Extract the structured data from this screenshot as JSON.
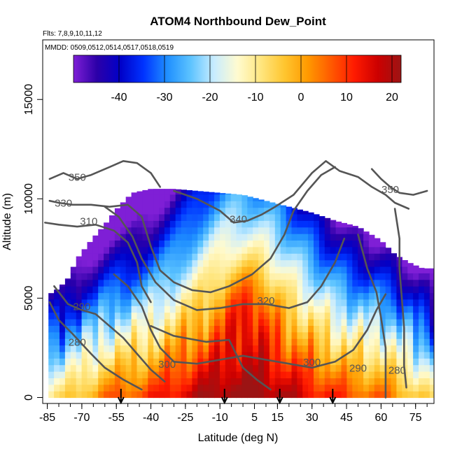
{
  "chart_data": {
    "type": "heatmap",
    "title": "ATOM4 Northbound Dew_Point",
    "flights_note": "Flts: 7,8,9,10,11,12",
    "dates_note": "MMDD: 0509,0512,0514,0517,0518,0519",
    "xlabel": "Latitude (deg N)",
    "ylabel": "Altitude (m)",
    "xlim": [
      -87,
      83
    ],
    "ylim": [
      -300,
      18000
    ],
    "x_ticks": [
      -85,
      -70,
      -55,
      -40,
      -25,
      -10,
      5,
      15,
      30,
      45,
      60,
      75
    ],
    "y_ticks": [
      0,
      5000,
      10000,
      15000
    ],
    "colorbar": {
      "range": [
        -50,
        22
      ],
      "ticks": [
        -40,
        -30,
        -20,
        -10,
        0,
        10,
        20
      ],
      "colors": [
        "#7f1fd6",
        "#2c00a8",
        "#0000c8",
        "#0033ff",
        "#1f8fff",
        "#5cc3ff",
        "#c8ecff",
        "#fffbd0",
        "#ffe680",
        "#ffc630",
        "#ff9a00",
        "#ff5a00",
        "#ff1a00",
        "#cc0000",
        "#9c1414"
      ]
    },
    "curtain_profile": [
      {
        "lat": -84,
        "top": 5200
      },
      {
        "lat": -80,
        "top": 5500
      },
      {
        "lat": -76,
        "top": 6000
      },
      {
        "lat": -72,
        "top": 7000
      },
      {
        "lat": -66,
        "top": 7900
      },
      {
        "lat": -60,
        "top": 8700
      },
      {
        "lat": -54,
        "top": 9600
      },
      {
        "lat": -48,
        "top": 10300
      },
      {
        "lat": -40,
        "top": 10500
      },
      {
        "lat": -30,
        "top": 10500
      },
      {
        "lat": -20,
        "top": 10400
      },
      {
        "lat": -10,
        "top": 10300
      },
      {
        "lat": 0,
        "top": 10200
      },
      {
        "lat": 10,
        "top": 9900
      },
      {
        "lat": 20,
        "top": 9600
      },
      {
        "lat": 30,
        "top": 9300
      },
      {
        "lat": 40,
        "top": 8900
      },
      {
        "lat": 50,
        "top": 8600
      },
      {
        "lat": 60,
        "top": 7900
      },
      {
        "lat": 66,
        "top": 7200
      },
      {
        "lat": 72,
        "top": 6800
      },
      {
        "lat": 78,
        "top": 6500
      },
      {
        "lat": 82,
        "top": 6500
      }
    ],
    "contour_labels": [
      {
        "text": "350",
        "lat": -72,
        "alt": 10900
      },
      {
        "text": "330",
        "lat": -78,
        "alt": 9600
      },
      {
        "text": "310",
        "lat": -67,
        "alt": 8700
      },
      {
        "text": "340",
        "lat": -2,
        "alt": 8800
      },
      {
        "text": "350",
        "lat": 64,
        "alt": 10300
      },
      {
        "text": "320",
        "lat": 10,
        "alt": 4700
      },
      {
        "text": "290",
        "lat": -70,
        "alt": 4400
      },
      {
        "text": "280",
        "lat": -72,
        "alt": 2600
      },
      {
        "text": "300",
        "lat": -33,
        "alt": 1500
      },
      {
        "text": "300",
        "lat": 30,
        "alt": 1600
      },
      {
        "text": "290",
        "lat": 50,
        "alt": 1300
      },
      {
        "text": "280",
        "lat": 67,
        "alt": 1200
      }
    ],
    "isentropes": [
      {
        "level": "280",
        "points": [
          [
            -84,
            4800
          ],
          [
            -80,
            3900
          ],
          [
            -74,
            3200
          ],
          [
            -66,
            2200
          ],
          [
            -60,
            1500
          ],
          [
            -52,
            900
          ],
          [
            -44,
            400
          ]
        ]
      },
      {
        "level": "290",
        "points": [
          [
            -82,
            5600
          ],
          [
            -76,
            4700
          ],
          [
            -70,
            4400
          ],
          [
            -64,
            4200
          ],
          [
            -58,
            3600
          ],
          [
            -52,
            3000
          ],
          [
            -46,
            2200
          ],
          [
            -40,
            1400
          ],
          [
            -34,
            800
          ]
        ]
      },
      {
        "level": "300",
        "points": [
          [
            -56,
            6200
          ],
          [
            -50,
            5600
          ],
          [
            -44,
            4600
          ],
          [
            -40,
            3400
          ],
          [
            -36,
            2500
          ],
          [
            -30,
            1800
          ],
          [
            -20,
            1700
          ],
          [
            -10,
            1900
          ],
          [
            0,
            2100
          ],
          [
            10,
            1900
          ],
          [
            20,
            1700
          ],
          [
            30,
            1500
          ],
          [
            40,
            1800
          ],
          [
            48,
            2400
          ],
          [
            54,
            3400
          ],
          [
            58,
            4400
          ],
          [
            62,
            5200
          ]
        ]
      },
      {
        "level": "300b",
        "points": [
          [
            -40,
            3600
          ],
          [
            -30,
            3100
          ],
          [
            -16,
            2800
          ],
          [
            -6,
            2900
          ],
          [
            0,
            1500
          ],
          [
            6,
            900
          ],
          [
            12,
            400
          ]
        ]
      },
      {
        "level": "310",
        "points": [
          [
            -86,
            8800
          ],
          [
            -80,
            8700
          ],
          [
            -72,
            8600
          ],
          [
            -64,
            8700
          ],
          [
            -56,
            8400
          ],
          [
            -50,
            7800
          ],
          [
            -46,
            6800
          ],
          [
            -44,
            5600
          ],
          [
            -40,
            4800
          ]
        ]
      },
      {
        "level": "320",
        "points": [
          [
            -60,
            9600
          ],
          [
            -54,
            9100
          ],
          [
            -48,
            8100
          ],
          [
            -44,
            7000
          ],
          [
            -38,
            5800
          ],
          [
            -30,
            4900
          ],
          [
            -20,
            4400
          ],
          [
            -10,
            4500
          ],
          [
            0,
            4700
          ],
          [
            10,
            4700
          ],
          [
            20,
            4500
          ],
          [
            28,
            4800
          ],
          [
            34,
            5600
          ],
          [
            40,
            6800
          ],
          [
            44,
            8000
          ]
        ]
      },
      {
        "level": "330",
        "points": [
          [
            -84,
            9900
          ],
          [
            -80,
            9800
          ],
          [
            -74,
            9700
          ],
          [
            -66,
            9700
          ],
          [
            -58,
            9600
          ],
          [
            -50,
            9700
          ],
          [
            -44,
            9100
          ],
          [
            -40,
            7600
          ],
          [
            -36,
            6400
          ],
          [
            -30,
            5800
          ],
          [
            -22,
            5400
          ],
          [
            -14,
            5300
          ],
          [
            -6,
            5600
          ],
          [
            4,
            6200
          ],
          [
            12,
            7000
          ],
          [
            18,
            8200
          ],
          [
            22,
            9400
          ],
          [
            28,
            10400
          ],
          [
            34,
            11200
          ],
          [
            40,
            11600
          ]
        ]
      },
      {
        "level": "340",
        "points": [
          [
            -30,
            10400
          ],
          [
            -20,
            10000
          ],
          [
            -10,
            9400
          ],
          [
            -4,
            8800
          ],
          [
            2,
            8900
          ],
          [
            8,
            9200
          ],
          [
            14,
            9600
          ],
          [
            22,
            10200
          ],
          [
            30,
            11300
          ],
          [
            36,
            11900
          ],
          [
            42,
            11400
          ],
          [
            50,
            11100
          ],
          [
            56,
            10600
          ],
          [
            62,
            10200
          ],
          [
            66,
            9800
          ],
          [
            72,
            9500
          ]
        ]
      },
      {
        "level": "350",
        "points": [
          [
            -84,
            11000
          ],
          [
            -78,
            11300
          ],
          [
            -72,
            11000
          ],
          [
            -66,
            11200
          ],
          [
            -58,
            11600
          ],
          [
            -52,
            11900
          ],
          [
            -46,
            11800
          ],
          [
            -40,
            11300
          ],
          [
            -36,
            10600
          ]
        ]
      },
      {
        "level": "350b",
        "points": [
          [
            56,
            11500
          ],
          [
            60,
            11000
          ],
          [
            64,
            10600
          ],
          [
            68,
            10300
          ],
          [
            74,
            10200
          ],
          [
            80,
            10400
          ]
        ]
      },
      {
        "level": "tropo-north",
        "points": [
          [
            50,
            8200
          ],
          [
            54,
            6500
          ],
          [
            58,
            5300
          ],
          [
            60,
            4000
          ],
          [
            62,
            2500
          ],
          [
            62,
            800
          ],
          [
            62,
            0
          ]
        ]
      },
      {
        "level": "tropo-north2",
        "points": [
          [
            66,
            9500
          ],
          [
            68,
            8000
          ],
          [
            68,
            6500
          ],
          [
            69,
            5000
          ],
          [
            70,
            3500
          ],
          [
            70,
            1600
          ],
          [
            71,
            500
          ]
        ]
      }
    ],
    "sonde_arrows_lat": [
      -53,
      -8,
      16,
      39
    ],
    "surface_arrow_label": ""
  }
}
